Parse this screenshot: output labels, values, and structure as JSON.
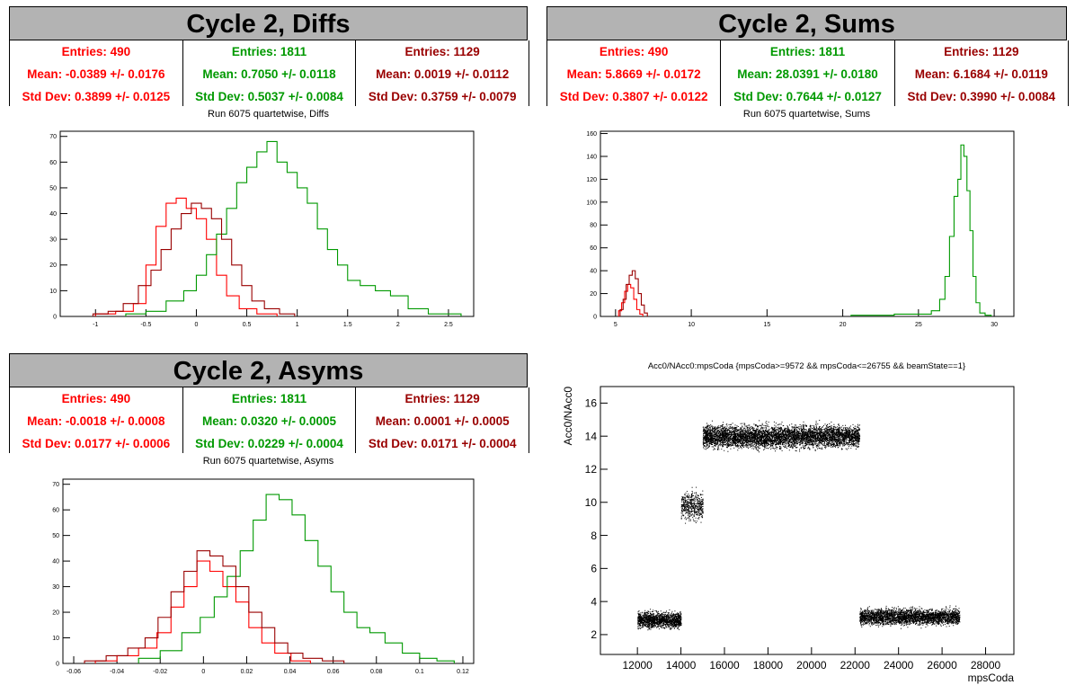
{
  "colors": {
    "red": "#ff0000",
    "green": "#009900",
    "maroon": "#990000"
  },
  "panels": {
    "diffs": {
      "title": "Cycle 2, Diffs",
      "subtitle": "Run 6075 quartetwise, Diffs",
      "stats": [
        {
          "entries": "Entries: 490",
          "mean": "Mean: -0.0389 +/- 0.0176",
          "std": "Std Dev: 0.3899 +/- 0.0125"
        },
        {
          "entries": "Entries: 1811",
          "mean": "Mean: 0.7050 +/- 0.0118",
          "std": "Std Dev: 0.5037 +/- 0.0084"
        },
        {
          "entries": "Entries: 1129",
          "mean": "Mean: 0.0019 +/- 0.0112",
          "std": "Std Dev: 0.3759 +/- 0.0079"
        }
      ]
    },
    "sums": {
      "title": "Cycle 2, Sums",
      "subtitle": "Run 6075 quartetwise, Sums",
      "stats": [
        {
          "entries": "Entries: 490",
          "mean": "Mean: 5.8669 +/- 0.0172",
          "std": "Std Dev: 0.3807 +/- 0.0122"
        },
        {
          "entries": "Entries: 1811",
          "mean": "Mean: 28.0391 +/- 0.0180",
          "std": "Std Dev: 0.7644 +/- 0.0127"
        },
        {
          "entries": "Entries: 1129",
          "mean": "Mean: 6.1684 +/- 0.0119",
          "std": "Std Dev: 0.3990 +/- 0.0084"
        }
      ]
    },
    "asyms": {
      "title": "Cycle 2, Asyms",
      "subtitle": "Run 6075 quartetwise, Asyms",
      "stats": [
        {
          "entries": "Entries: 490",
          "mean": "Mean: -0.0018 +/- 0.0008",
          "std": "Std Dev: 0.0177 +/- 0.0006"
        },
        {
          "entries": "Entries: 1811",
          "mean": "Mean: 0.0320 +/- 0.0005",
          "std": "Std Dev: 0.0229 +/- 0.0004"
        },
        {
          "entries": "Entries: 1129",
          "mean": "Mean: 0.0001 +/- 0.0005",
          "std": "Std Dev: 0.0171 +/- 0.0004"
        }
      ]
    },
    "scatter": {
      "title": "Acc0/NAcc0:mpsCoda {mpsCoda>=9572 && mpsCoda<=26755 && beamState==1}",
      "xlabel": "mpsCoda",
      "ylabel": "Acc0/NAcc0"
    }
  },
  "chart_data": [
    {
      "type": "histogram",
      "name": "diffs",
      "xlim": [
        -1.35,
        2.75
      ],
      "ylim": [
        0,
        72
      ],
      "xticks": [
        -1,
        -0.5,
        0,
        0.5,
        1,
        1.5,
        2,
        2.5
      ],
      "yticks": [
        0,
        10,
        20,
        30,
        40,
        50,
        60,
        70
      ],
      "series": [
        {
          "color": "red",
          "bins": [
            [
              -0.9,
              1
            ],
            [
              -0.7,
              2
            ],
            [
              -0.55,
              5
            ],
            [
              -0.45,
              20
            ],
            [
              -0.35,
              35
            ],
            [
              -0.25,
              44
            ],
            [
              -0.15,
              46
            ],
            [
              -0.05,
              42
            ],
            [
              0.05,
              38
            ],
            [
              0.15,
              30
            ],
            [
              0.25,
              16
            ],
            [
              0.35,
              8
            ],
            [
              0.5,
              3
            ],
            [
              0.7,
              1
            ]
          ]
        },
        {
          "color": "green",
          "bins": [
            [
              -0.6,
              1
            ],
            [
              -0.4,
              2
            ],
            [
              -0.2,
              6
            ],
            [
              -0.05,
              10
            ],
            [
              0.05,
              16
            ],
            [
              0.15,
              24
            ],
            [
              0.25,
              32
            ],
            [
              0.35,
              42
            ],
            [
              0.45,
              52
            ],
            [
              0.55,
              58
            ],
            [
              0.65,
              64
            ],
            [
              0.75,
              68
            ],
            [
              0.85,
              60
            ],
            [
              0.95,
              56
            ],
            [
              1.05,
              50
            ],
            [
              1.15,
              44
            ],
            [
              1.25,
              34
            ],
            [
              1.35,
              26
            ],
            [
              1.45,
              20
            ],
            [
              1.55,
              14
            ],
            [
              1.7,
              12
            ],
            [
              1.85,
              10
            ],
            [
              2.0,
              8
            ],
            [
              2.2,
              3
            ],
            [
              2.4,
              1
            ],
            [
              2.55,
              1
            ]
          ]
        },
        {
          "color": "maroon",
          "bins": [
            [
              -0.95,
              1
            ],
            [
              -0.8,
              2
            ],
            [
              -0.65,
              5
            ],
            [
              -0.5,
              12
            ],
            [
              -0.4,
              18
            ],
            [
              -0.3,
              26
            ],
            [
              -0.2,
              34
            ],
            [
              -0.1,
              40
            ],
            [
              0.0,
              44
            ],
            [
              0.1,
              42
            ],
            [
              0.2,
              38
            ],
            [
              0.3,
              30
            ],
            [
              0.4,
              20
            ],
            [
              0.5,
              12
            ],
            [
              0.6,
              6
            ],
            [
              0.75,
              3
            ],
            [
              0.9,
              1
            ]
          ]
        }
      ]
    },
    {
      "type": "histogram",
      "name": "sums",
      "xlim": [
        4,
        31.3
      ],
      "ylim": [
        0,
        162
      ],
      "xticks": [
        5,
        10,
        15,
        20,
        25,
        30
      ],
      "yticks": [
        0,
        20,
        40,
        60,
        80,
        100,
        120,
        140,
        160
      ],
      "series": [
        {
          "color": "red",
          "bins": [
            [
              5.3,
              5
            ],
            [
              5.5,
              12
            ],
            [
              5.7,
              22
            ],
            [
              5.9,
              28
            ],
            [
              6.1,
              25
            ],
            [
              6.3,
              15
            ],
            [
              6.5,
              6
            ],
            [
              6.7,
              2
            ]
          ]
        },
        {
          "color": "maroon",
          "bins": [
            [
              5.4,
              6
            ],
            [
              5.6,
              15
            ],
            [
              5.8,
              28
            ],
            [
              6.0,
              36
            ],
            [
              6.2,
              40
            ],
            [
              6.4,
              33
            ],
            [
              6.6,
              20
            ],
            [
              6.8,
              10
            ],
            [
              7.0,
              3
            ]
          ]
        },
        {
          "color": "green",
          "bins": [
            [
              20.8,
              1
            ],
            [
              21.3,
              1
            ],
            [
              25.5,
              2
            ],
            [
              26.2,
              5
            ],
            [
              26.6,
              15
            ],
            [
              26.9,
              35
            ],
            [
              27.2,
              70
            ],
            [
              27.5,
              105
            ],
            [
              27.7,
              120
            ],
            [
              27.9,
              150
            ],
            [
              28.1,
              140
            ],
            [
              28.3,
              110
            ],
            [
              28.5,
              75
            ],
            [
              28.7,
              35
            ],
            [
              28.9,
              12
            ],
            [
              29.2,
              3
            ],
            [
              29.6,
              1
            ]
          ]
        }
      ]
    },
    {
      "type": "histogram",
      "name": "asyms",
      "xlim": [
        -0.065,
        0.125
      ],
      "ylim": [
        0,
        72
      ],
      "xticks": [
        -0.06,
        -0.04,
        -0.02,
        0,
        0.02,
        0.04,
        0.06,
        0.08,
        0.1,
        0.12
      ],
      "yticks": [
        0,
        10,
        20,
        30,
        40,
        50,
        60,
        70
      ],
      "series": [
        {
          "color": "red",
          "bins": [
            [
              -0.045,
              1
            ],
            [
              -0.035,
              3
            ],
            [
              -0.025,
              6
            ],
            [
              -0.018,
              12
            ],
            [
              -0.012,
              22
            ],
            [
              -0.006,
              30
            ],
            [
              0.0,
              40
            ],
            [
              0.006,
              36
            ],
            [
              0.012,
              30
            ],
            [
              0.018,
              24
            ],
            [
              0.024,
              14
            ],
            [
              0.03,
              8
            ],
            [
              0.036,
              4
            ],
            [
              0.045,
              1
            ]
          ]
        },
        {
          "color": "green",
          "bins": [
            [
              -0.025,
              2
            ],
            [
              -0.015,
              5
            ],
            [
              -0.005,
              12
            ],
            [
              0.002,
              18
            ],
            [
              0.008,
              26
            ],
            [
              0.014,
              34
            ],
            [
              0.02,
              44
            ],
            [
              0.026,
              56
            ],
            [
              0.032,
              66
            ],
            [
              0.038,
              64
            ],
            [
              0.044,
              58
            ],
            [
              0.05,
              48
            ],
            [
              0.056,
              38
            ],
            [
              0.062,
              28
            ],
            [
              0.068,
              20
            ],
            [
              0.074,
              14
            ],
            [
              0.08,
              12
            ],
            [
              0.088,
              8
            ],
            [
              0.096,
              4
            ],
            [
              0.104,
              2
            ],
            [
              0.112,
              1
            ]
          ]
        },
        {
          "color": "maroon",
          "bins": [
            [
              -0.05,
              1
            ],
            [
              -0.04,
              3
            ],
            [
              -0.03,
              6
            ],
            [
              -0.024,
              10
            ],
            [
              -0.018,
              18
            ],
            [
              -0.012,
              28
            ],
            [
              -0.006,
              36
            ],
            [
              0.0,
              44
            ],
            [
              0.006,
              42
            ],
            [
              0.012,
              38
            ],
            [
              0.018,
              30
            ],
            [
              0.024,
              20
            ],
            [
              0.03,
              14
            ],
            [
              0.036,
              8
            ],
            [
              0.042,
              4
            ],
            [
              0.05,
              2
            ],
            [
              0.06,
              1
            ]
          ]
        }
      ]
    },
    {
      "type": "scatter",
      "name": "acc0-vs-mpscoda",
      "xlim": [
        10300,
        29300
      ],
      "ylim": [
        0.8,
        17
      ],
      "xticks": [
        12000,
        14000,
        16000,
        18000,
        20000,
        22000,
        24000,
        26000,
        28000
      ],
      "yticks": [
        2,
        4,
        6,
        8,
        10,
        12,
        14,
        16
      ],
      "clusters": [
        {
          "x": [
            12000,
            14000
          ],
          "y": 2.9,
          "spread": 0.45,
          "n": 1500
        },
        {
          "x": [
            14000,
            15000
          ],
          "y": 9.8,
          "spread": 0.8,
          "n": 500
        },
        {
          "x": [
            15000,
            22200
          ],
          "y": 14.0,
          "spread": 0.65,
          "n": 5500
        },
        {
          "x": [
            22200,
            26800
          ],
          "y": 3.1,
          "spread": 0.45,
          "n": 3000
        }
      ]
    }
  ]
}
